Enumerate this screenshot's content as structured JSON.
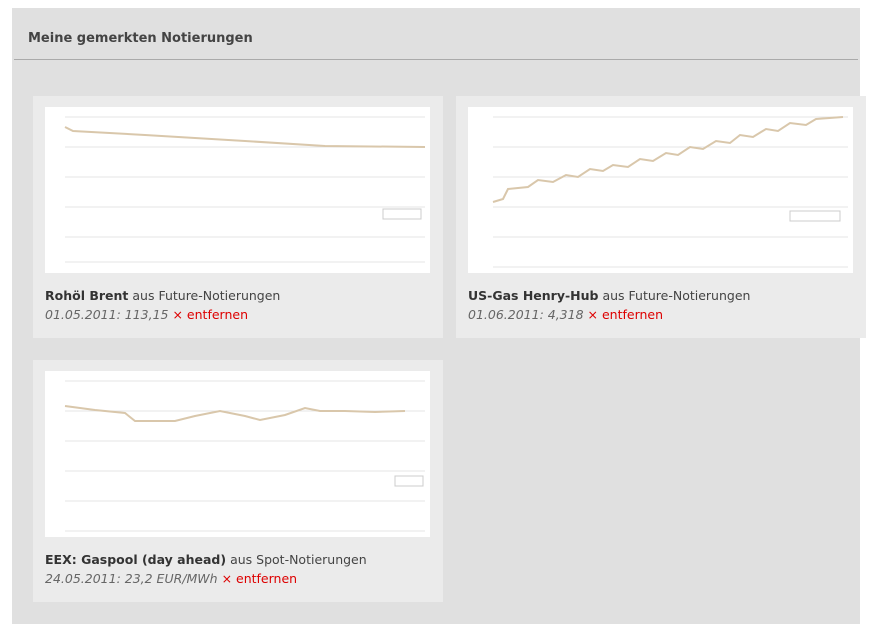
{
  "header": {
    "title": "Meine gemerkten Notierungen"
  },
  "cards": [
    {
      "name": "Rohöl Brent",
      "source": "aus Future-Notierungen",
      "quote": "01.05.2011: 113,15",
      "remove": "× entfernen"
    },
    {
      "name": "US-Gas Henry-Hub",
      "source": "aus Future-Notierungen",
      "quote": "01.06.2011: 4,318",
      "remove": "× entfernen"
    },
    {
      "name": "EEX: Gaspool (day ahead)",
      "source": "aus Spot-Notierungen",
      "quote": "24.05.2011: 23,2 EUR/MWh",
      "remove": "× entfernen"
    }
  ]
}
